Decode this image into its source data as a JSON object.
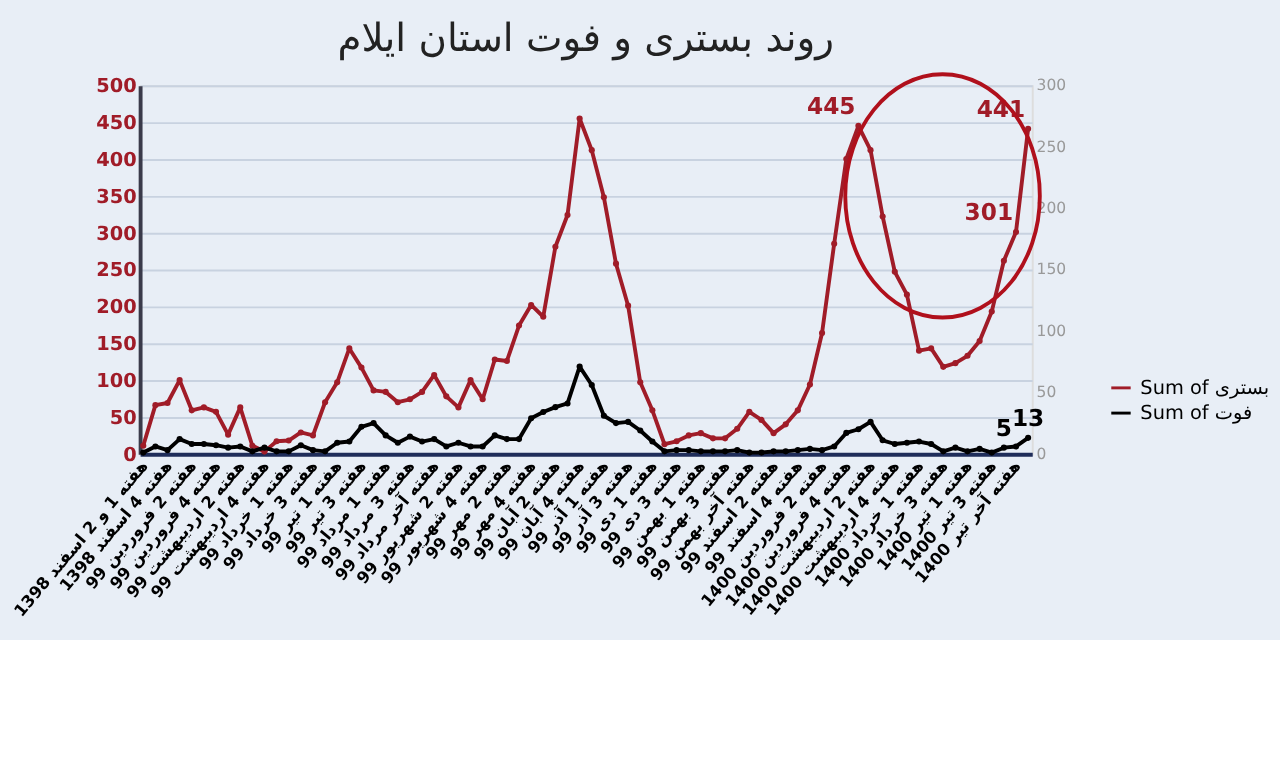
{
  "chart_data": {
    "type": "line",
    "title": "روند بستری و فوت استان ایلام",
    "categories": [
      "هفته 1 و 2 اسفند 1398",
      null,
      "هفته 4 اسفند 1398",
      null,
      "هفته 2 فروردین 99",
      null,
      "هفته 4 فروردین 99",
      null,
      "هفته 2 اردیبهشت 99",
      null,
      "هفته 4 اردیبهشت 99",
      null,
      "هفته 1 خرداد 99",
      null,
      "هفته 3 خرداد 99",
      null,
      "هفته 1 تیر 99",
      null,
      "هفته 3 تیر 99",
      null,
      "هفته 1 مرداد 99",
      null,
      "هفته 3 مرداد 99",
      null,
      "هفته آخر مرداد 99",
      null,
      "هفته 2 شهریور 99",
      null,
      "هفته 4 شهریور 99",
      null,
      "هفته 2 مهر 99",
      null,
      "هفته 4 مهر 99",
      null,
      "هفته 2 آبان 99",
      null,
      "هفته 4 آبان 99",
      null,
      "هفته 1 آذر 99",
      null,
      "هفته 3 آذر 99",
      null,
      "هفته 1 دی 99",
      null,
      "هفته 3 دی 99",
      null,
      "هفته 1 بهمن 99",
      null,
      "هفته 3 بهمن 99",
      null,
      "هفته آخر بهمن 99",
      null,
      "هفته 2 اسفند 99",
      null,
      "هفته 4 اسفند 99",
      null,
      "هفته 2 فروردین 1400",
      null,
      "هفته 4 فروردین 1400",
      null,
      "هفته 2 اردیبهشت 1400",
      null,
      "هفته 4 اردیبهشت 1400",
      null,
      "هفته 1 خرداد 1400",
      null,
      "هفته 3 خرداد 1400",
      null,
      "هفته 1 تیر 1400",
      null,
      "هفته 3 تیر 1400",
      null,
      "هفته آخر تیر 1400",
      null
    ],
    "series": [
      {
        "name": "Sum of بستری",
        "color": "#a01c28",
        "values": [
          11,
          66,
          69,
          100,
          59,
          63,
          57,
          26,
          63,
          11,
          3,
          17,
          18,
          29,
          25,
          70,
          97,
          143,
          117,
          86,
          84,
          70,
          74,
          84,
          107,
          78,
          63,
          100,
          74,
          128,
          126,
          174,
          202,
          186,
          281,
          324,
          455,
          412,
          348,
          258,
          201,
          97,
          59,
          13,
          17,
          25,
          28,
          21,
          21,
          34,
          57,
          46,
          28,
          40,
          59,
          94,
          164,
          285,
          400,
          445,
          412,
          322,
          247,
          216,
          140,
          143,
          118,
          123,
          133,
          153,
          193,
          262,
          301,
          441
        ],
        "value_labels": [
          null,
          null,
          null,
          null,
          null,
          null,
          null,
          null,
          null,
          null,
          null,
          null,
          null,
          null,
          null,
          null,
          null,
          null,
          null,
          null,
          null,
          null,
          null,
          null,
          null,
          null,
          null,
          null,
          null,
          null,
          null,
          null,
          null,
          null,
          null,
          null,
          null,
          null,
          null,
          null,
          null,
          null,
          null,
          null,
          null,
          null,
          null,
          null,
          null,
          null,
          null,
          null,
          null,
          null,
          null,
          null,
          null,
          null,
          null,
          "445",
          null,
          null,
          null,
          null,
          null,
          null,
          null,
          null,
          null,
          null,
          null,
          null,
          "301",
          "441"
        ]
      },
      {
        "name": "Sum of فوت",
        "color": "#000000",
        "axis": "y2",
        "values": [
          1,
          6,
          3,
          12,
          8,
          8,
          7,
          5,
          6,
          2,
          5,
          2,
          2,
          7,
          3,
          2,
          9,
          10,
          22,
          25,
          15,
          9,
          14,
          10,
          12,
          6,
          9,
          6,
          6,
          15,
          12,
          12,
          29,
          34,
          38,
          41,
          71,
          56,
          31,
          25,
          26,
          19,
          10,
          2,
          3,
          3,
          2,
          2,
          2,
          3,
          1,
          1,
          2,
          2,
          3,
          4,
          3,
          6,
          17,
          20,
          26,
          11,
          8,
          9,
          10,
          8,
          2,
          5,
          2,
          4,
          1,
          5,
          6,
          13
        ],
        "value_labels": [
          null,
          null,
          null,
          null,
          null,
          null,
          null,
          null,
          null,
          null,
          null,
          null,
          null,
          null,
          null,
          null,
          null,
          null,
          null,
          null,
          null,
          null,
          null,
          null,
          null,
          null,
          null,
          null,
          null,
          null,
          null,
          null,
          null,
          null,
          null,
          null,
          null,
          null,
          null,
          null,
          null,
          null,
          null,
          null,
          null,
          null,
          null,
          null,
          null,
          null,
          null,
          null,
          null,
          null,
          null,
          null,
          null,
          null,
          null,
          null,
          null,
          null,
          null,
          null,
          null,
          null,
          null,
          null,
          null,
          null,
          null,
          "5",
          null,
          "13"
        ]
      }
    ],
    "ylim": [
      0,
      500
    ],
    "yticks": [
      0,
      50,
      100,
      150,
      200,
      250,
      300,
      350,
      400,
      450,
      500
    ],
    "y2lim": [
      0,
      300
    ],
    "y2ticks": [
      0,
      50,
      100,
      150,
      200,
      250,
      300
    ],
    "grid": "y",
    "legend": "bottom right",
    "marker": "circle",
    "line_style": "solid"
  }
}
